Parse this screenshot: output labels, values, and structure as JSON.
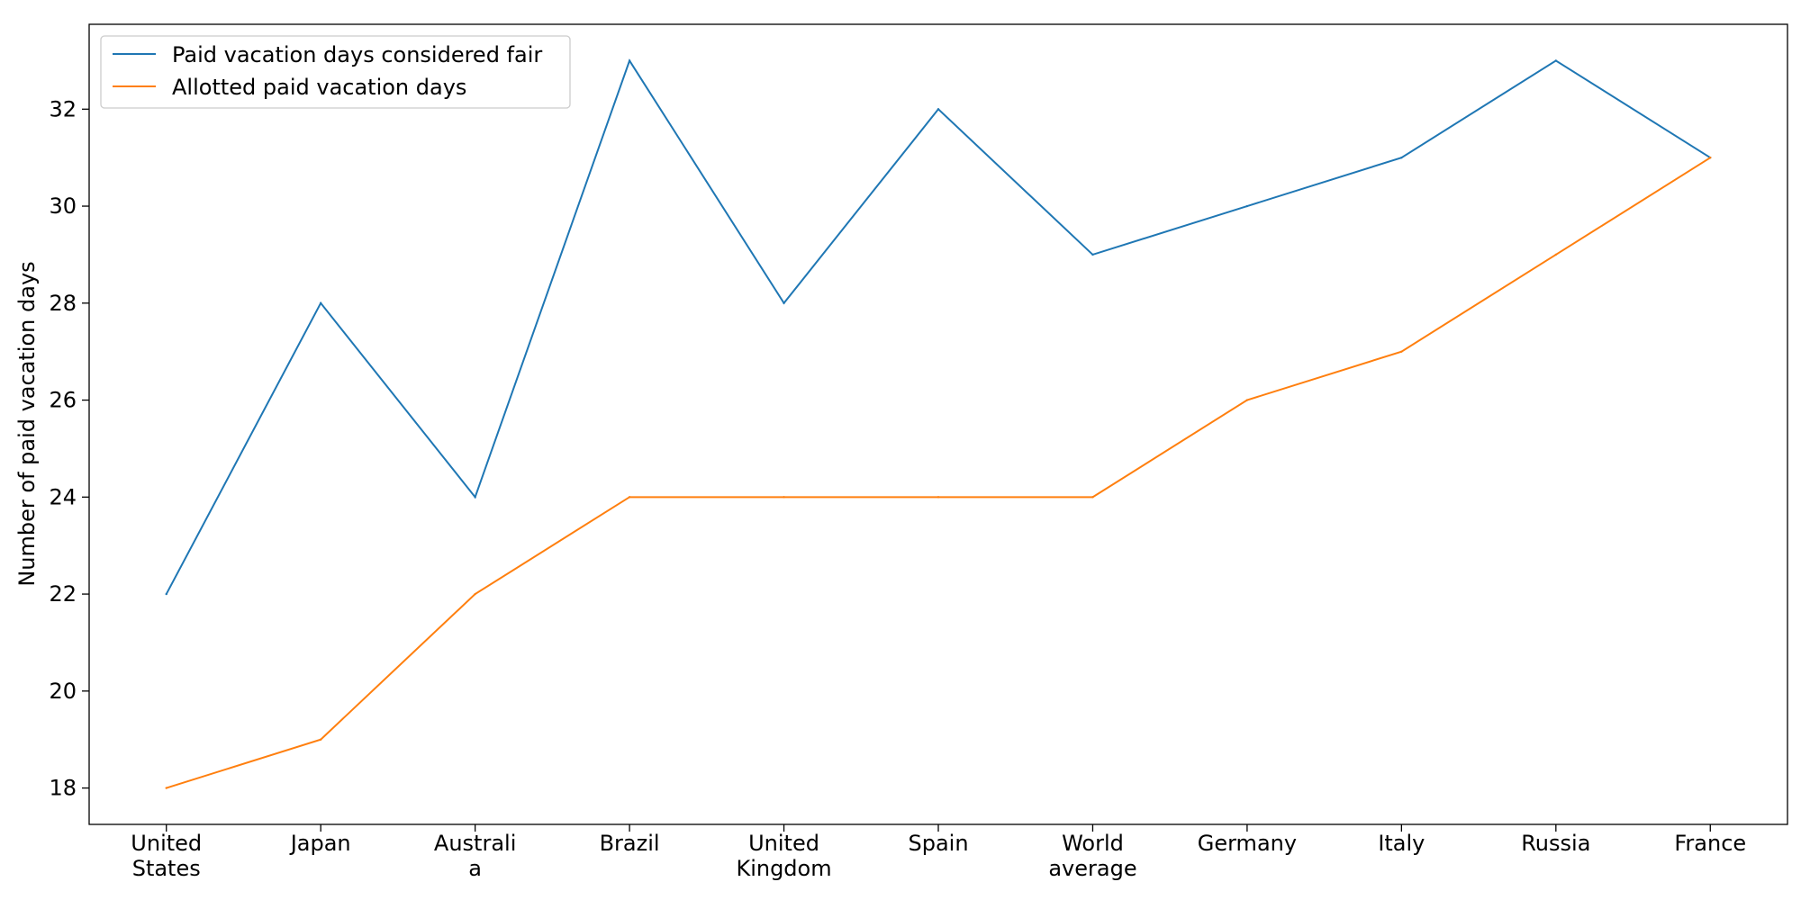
{
  "chart_data": {
    "type": "line",
    "categories": [
      "United\nStates",
      "Japan",
      "Australi\na",
      "Brazil",
      "United\nKingdom",
      "Spain",
      "World\naverage",
      "Germany",
      "Italy",
      "Russia",
      "France"
    ],
    "series": [
      {
        "name": "Paid vacation days considered fair",
        "color": "#1f77b4",
        "values": [
          22,
          28,
          24,
          33,
          28,
          32,
          29,
          30,
          31,
          33,
          31
        ]
      },
      {
        "name": "Allotted paid vacation days",
        "color": "#ff7f0e",
        "values": [
          18,
          19,
          22,
          24,
          24,
          24,
          24,
          26,
          27,
          29,
          31
        ]
      }
    ],
    "title": "",
    "xlabel": "",
    "ylabel": "Number of paid vacation days",
    "ylim": [
      17.25,
      33.75
    ],
    "yticks": [
      18,
      20,
      22,
      24,
      26,
      28,
      30,
      32
    ],
    "grid": false,
    "legend_position": "top-left"
  }
}
